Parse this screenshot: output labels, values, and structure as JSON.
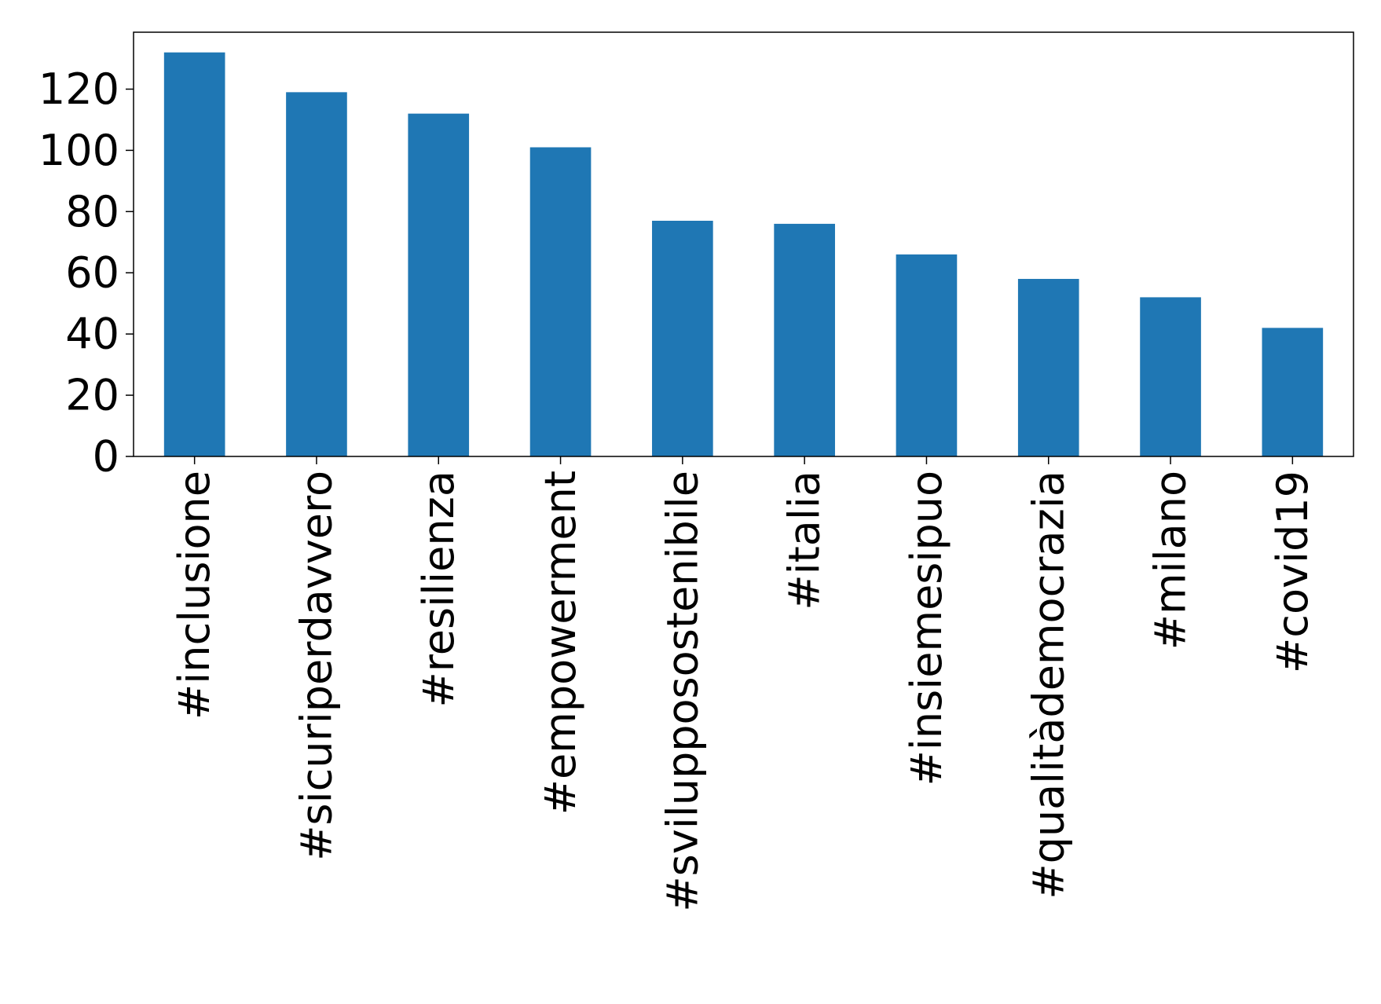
{
  "chart_data": {
    "type": "bar",
    "title": "",
    "xlabel": "",
    "ylabel": "",
    "categories": [
      "#inclusione",
      "#sicuriperdavvero",
      "#resilienza",
      "#empowerment",
      "#svilupposostenibile",
      "#italia",
      "#insiemesipuo",
      "#qualitàdemocrazia",
      "#milano",
      "#covid19"
    ],
    "values": [
      132,
      119,
      112,
      101,
      77,
      76,
      66,
      58,
      52,
      42
    ],
    "ylim": [
      0,
      138.6
    ],
    "yticks": [
      0,
      20,
      40,
      60,
      80,
      100,
      120
    ],
    "grid": false,
    "legend": "none",
    "bar_color": "#1f77b4",
    "axis_color": "#000000"
  }
}
